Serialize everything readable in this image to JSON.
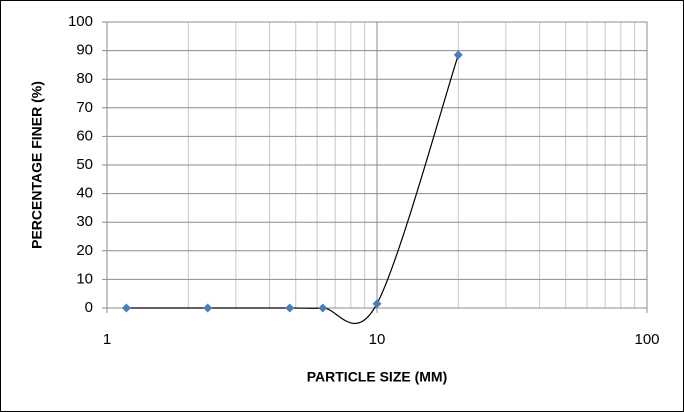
{
  "chart_data": {
    "type": "scatter",
    "x_label": "PARTICLE SIZE (MM)",
    "y_label": "PERCENTAGE FINER (%)",
    "x": [
      1.18,
      2.36,
      4.75,
      6.3,
      10,
      20
    ],
    "series": [
      {
        "color": "#4a7ebb",
        "values": [
          0,
          0,
          0,
          0,
          1.5,
          88.5
        ]
      }
    ],
    "line_color": "#000000",
    "smooth": true,
    "xlim": [
      1,
      100
    ],
    "xticks": [
      1,
      10,
      100
    ],
    "x_log": true,
    "ylim": [
      0,
      100
    ],
    "yticks": [
      0,
      10,
      20,
      30,
      40,
      50,
      60,
      70,
      80,
      90,
      100
    ],
    "grid": true,
    "minor_grid": true
  }
}
